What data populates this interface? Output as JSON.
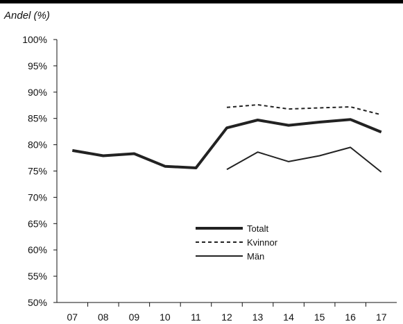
{
  "chart_data": {
    "type": "line",
    "ylabel": "Andel (%)",
    "xlabel": "",
    "title": "",
    "categories": [
      "07",
      "08",
      "09",
      "10",
      "11",
      "12",
      "13",
      "14",
      "15",
      "16",
      "17"
    ],
    "ylim": [
      50,
      100
    ],
    "yticks": [
      "50%",
      "55%",
      "60%",
      "65%",
      "70%",
      "75%",
      "80%",
      "85%",
      "90%",
      "95%",
      "100%"
    ],
    "grid": false,
    "legend_position": "center-right",
    "series": [
      {
        "name": "Totalt",
        "style": "thick-solid",
        "color": "#222222",
        "values": [
          78.9,
          77.9,
          78.3,
          75.9,
          75.6,
          83.2,
          84.7,
          83.7,
          84.3,
          84.8,
          82.4
        ]
      },
      {
        "name": "Kvinnor",
        "style": "dashed",
        "color": "#222222",
        "values": [
          null,
          null,
          null,
          null,
          null,
          87.1,
          87.6,
          86.8,
          87.0,
          87.2,
          85.7
        ]
      },
      {
        "name": "Män",
        "style": "thin-solid",
        "color": "#222222",
        "values": [
          null,
          null,
          null,
          null,
          null,
          75.3,
          78.6,
          76.8,
          77.9,
          79.5,
          74.8
        ]
      }
    ]
  }
}
